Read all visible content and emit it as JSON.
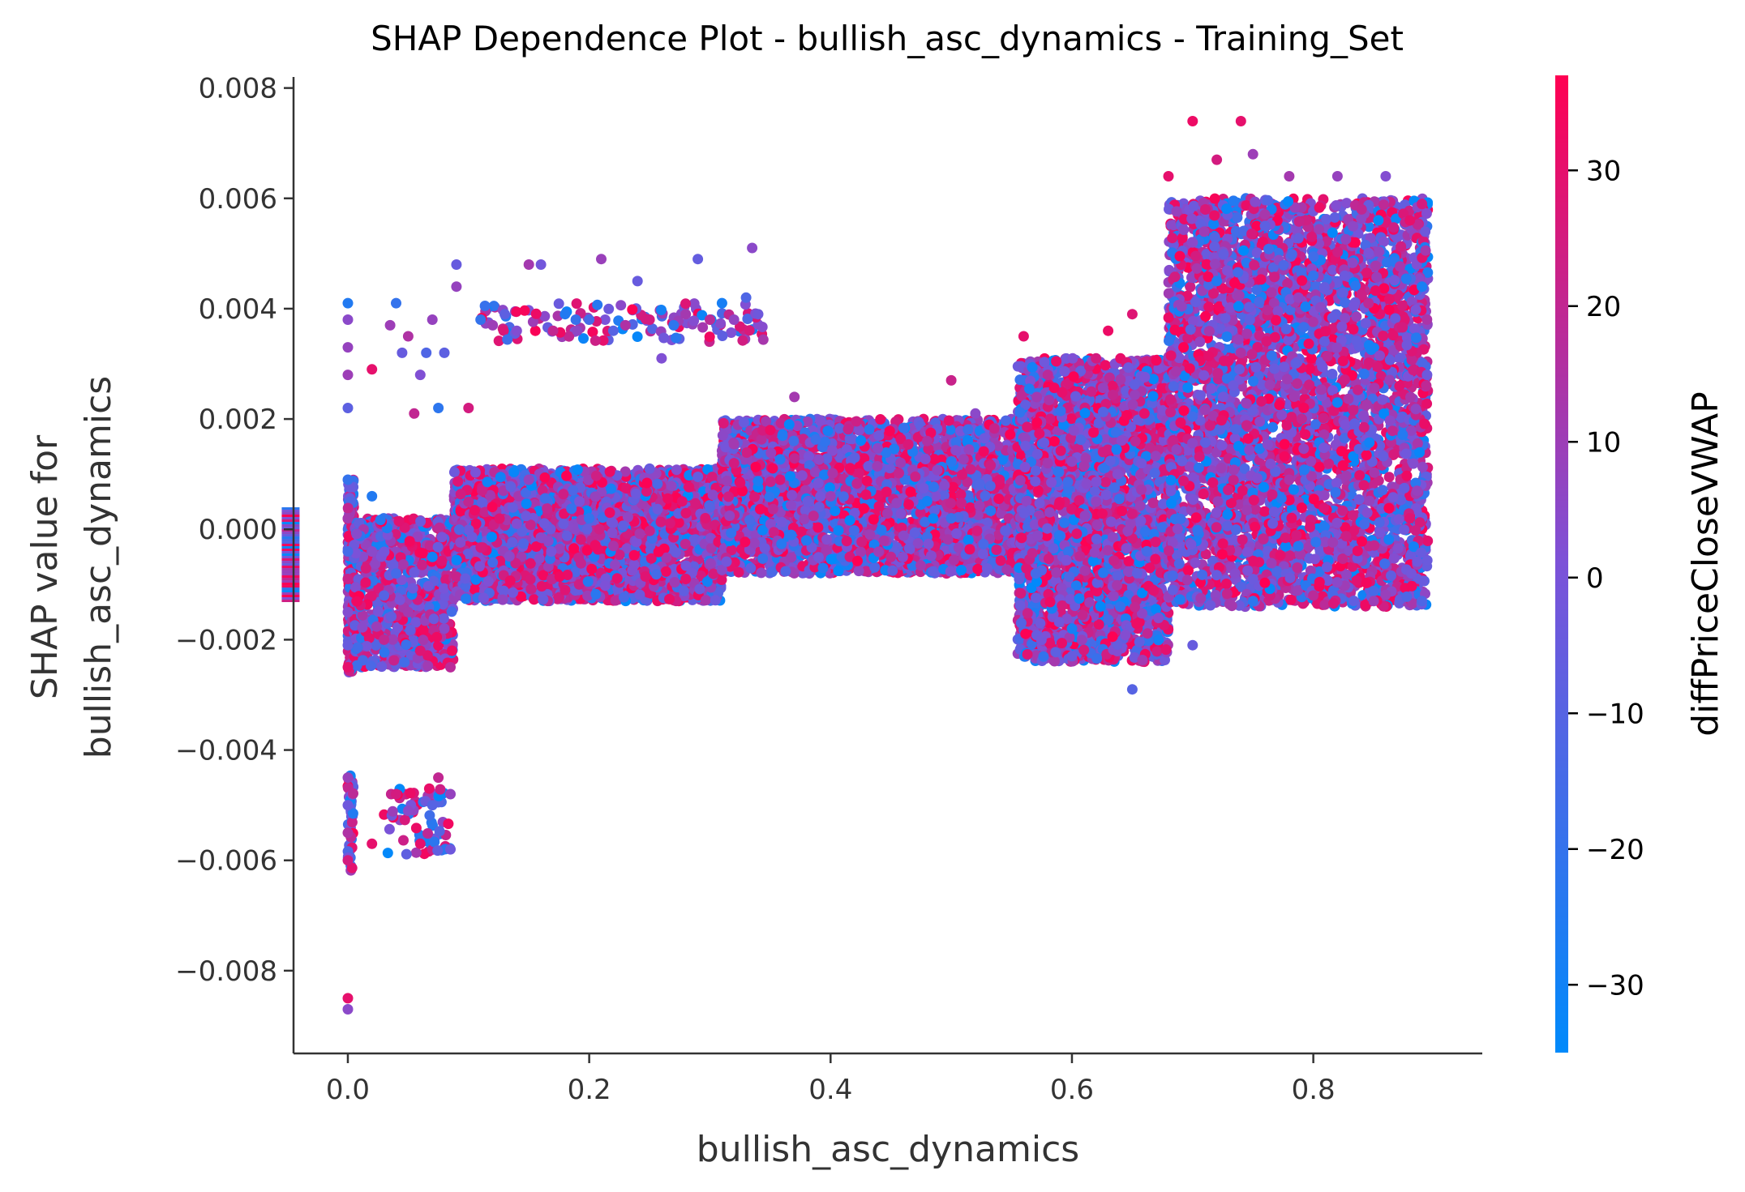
{
  "chart_data": {
    "type": "scatter",
    "title": "SHAP Dependence Plot - bullish_asc_dynamics - Training_Set",
    "xlabel": "bullish_asc_dynamics",
    "ylabel_lines": [
      "SHAP value for",
      "bullish_asc_dynamics"
    ],
    "xlim": [
      -0.045,
      0.94
    ],
    "ylim": [
      -0.0095,
      0.0082
    ],
    "x_ticks": [
      {
        "value": 0.0,
        "label": "0.0"
      },
      {
        "value": 0.2,
        "label": "0.2"
      },
      {
        "value": 0.4,
        "label": "0.4"
      },
      {
        "value": 0.6,
        "label": "0.6"
      },
      {
        "value": 0.8,
        "label": "0.8"
      }
    ],
    "y_ticks": [
      {
        "value": 0.008,
        "label": "0.008"
      },
      {
        "value": 0.006,
        "label": "0.006"
      },
      {
        "value": 0.004,
        "label": "0.004"
      },
      {
        "value": 0.002,
        "label": "0.002"
      },
      {
        "value": 0.0,
        "label": "0.000"
      },
      {
        "value": -0.002,
        "label": "−0.002"
      },
      {
        "value": -0.004,
        "label": "−0.004"
      },
      {
        "value": -0.006,
        "label": "−0.006"
      },
      {
        "value": -0.008,
        "label": "−0.008"
      }
    ],
    "colorbar": {
      "label": "diffPriceCloseVWAP",
      "range": [
        -35,
        37
      ],
      "colors": [
        "#008afb",
        "#7c52d8",
        "#ff0052"
      ],
      "ticks": [
        {
          "value": 30,
          "label": "30"
        },
        {
          "value": 20,
          "label": "20"
        },
        {
          "value": 10,
          "label": "10"
        },
        {
          "value": 0,
          "label": "0"
        },
        {
          "value": -10,
          "label": "−10"
        },
        {
          "value": -20,
          "label": "−20"
        },
        {
          "value": -30,
          "label": "−30"
        }
      ]
    },
    "missing_band": {
      "x": -0.04,
      "y_range": [
        -0.0013,
        0.0004
      ]
    },
    "points": [
      [
        0.0,
        0.0041,
        -25
      ],
      [
        0.0,
        0.0038,
        5
      ],
      [
        0.0,
        0.0033,
        8
      ],
      [
        0.0,
        0.0028,
        10
      ],
      [
        0.0,
        0.0022,
        -8
      ],
      [
        0.0,
        0.0009,
        -20
      ],
      [
        0.0,
        0.0002,
        12
      ],
      [
        0.0,
        -0.0004,
        -15
      ],
      [
        0.0,
        -0.0009,
        22
      ],
      [
        0.0,
        -0.0015,
        3
      ],
      [
        0.0,
        -0.0021,
        -5
      ],
      [
        0.0,
        -0.0025,
        30
      ],
      [
        0.0,
        -0.0045,
        9
      ],
      [
        0.0,
        -0.005,
        -3
      ],
      [
        0.0,
        -0.0055,
        15
      ],
      [
        0.0,
        -0.006,
        25
      ],
      [
        0.0,
        -0.0085,
        30
      ],
      [
        0.0,
        -0.0087,
        5
      ],
      [
        0.02,
        0.0029,
        30
      ],
      [
        0.02,
        0.0006,
        -25
      ],
      [
        0.02,
        -0.0004,
        5
      ],
      [
        0.03,
        -0.0012,
        -10
      ],
      [
        0.03,
        -0.002,
        20
      ],
      [
        0.02,
        -0.0057,
        30
      ],
      [
        0.035,
        0.0037,
        10
      ],
      [
        0.04,
        0.0041,
        -20
      ],
      [
        0.045,
        0.0032,
        -5
      ],
      [
        0.05,
        0.0035,
        15
      ],
      [
        0.055,
        0.0021,
        20
      ],
      [
        0.06,
        0.0028,
        2
      ],
      [
        0.065,
        0.0032,
        -12
      ],
      [
        0.07,
        0.0038,
        8
      ],
      [
        0.075,
        0.0022,
        -22
      ],
      [
        0.08,
        0.0032,
        -8
      ],
      [
        0.04,
        -0.0048,
        25
      ],
      [
        0.05,
        -0.0051,
        5
      ],
      [
        0.06,
        -0.0057,
        30
      ],
      [
        0.07,
        -0.005,
        -10
      ],
      [
        0.075,
        -0.0045,
        20
      ],
      [
        0.085,
        -0.0048,
        8
      ],
      [
        0.085,
        -0.0058,
        -3
      ],
      [
        0.04,
        -0.0008,
        -15
      ],
      [
        0.05,
        -0.0015,
        12
      ],
      [
        0.06,
        -0.0022,
        28
      ],
      [
        0.07,
        -0.0005,
        -30
      ],
      [
        0.08,
        -0.0018,
        5
      ],
      [
        0.085,
        -0.0025,
        18
      ],
      [
        0.09,
        0.0048,
        -5
      ],
      [
        0.09,
        0.0044,
        8
      ],
      [
        0.1,
        0.0022,
        25
      ],
      [
        0.11,
        0.0038,
        -20
      ],
      [
        0.12,
        0.0037,
        10
      ],
      [
        0.13,
        0.0039,
        -8
      ],
      [
        0.14,
        0.0036,
        3
      ],
      [
        0.15,
        0.0048,
        12
      ],
      [
        0.16,
        0.0048,
        -2
      ],
      [
        0.17,
        0.0036,
        20
      ],
      [
        0.18,
        0.0039,
        -25
      ],
      [
        0.19,
        0.0036,
        6
      ],
      [
        0.2,
        0.0038,
        -15
      ],
      [
        0.21,
        0.0049,
        9
      ],
      [
        0.22,
        0.0036,
        -10
      ],
      [
        0.23,
        0.0037,
        15
      ],
      [
        0.24,
        0.0045,
        -5
      ],
      [
        0.25,
        0.0038,
        25
      ],
      [
        0.26,
        0.0031,
        2
      ],
      [
        0.27,
        0.0037,
        -22
      ],
      [
        0.28,
        0.0039,
        12
      ],
      [
        0.29,
        0.0049,
        -6
      ],
      [
        0.3,
        0.0038,
        18
      ],
      [
        0.31,
        0.0041,
        -28
      ],
      [
        0.32,
        0.0038,
        7
      ],
      [
        0.33,
        0.0042,
        -12
      ],
      [
        0.335,
        0.0051,
        5
      ],
      [
        0.34,
        0.0039,
        -3
      ],
      [
        0.1,
        0.0005,
        20
      ],
      [
        0.12,
        -0.0006,
        -15
      ],
      [
        0.15,
        0.0009,
        8
      ],
      [
        0.18,
        -0.0011,
        28
      ],
      [
        0.2,
        0.0002,
        -20
      ],
      [
        0.22,
        -0.0003,
        14
      ],
      [
        0.25,
        0.0011,
        -5
      ],
      [
        0.28,
        -0.0009,
        30
      ],
      [
        0.3,
        0.0004,
        -10
      ],
      [
        0.14,
        0.0001,
        3
      ],
      [
        0.32,
        0.0012,
        25
      ],
      [
        0.35,
        0.0018,
        32
      ],
      [
        0.38,
        -0.0002,
        -25
      ],
      [
        0.4,
        0.0006,
        10
      ],
      [
        0.42,
        0.0013,
        -8
      ],
      [
        0.45,
        -0.0005,
        20
      ],
      [
        0.48,
        0.0016,
        15
      ],
      [
        0.5,
        0.0002,
        -18
      ],
      [
        0.52,
        0.0021,
        5
      ],
      [
        0.54,
        0.0009,
        28
      ],
      [
        0.37,
        0.0024,
        12
      ],
      [
        0.44,
        0.0017,
        -3
      ],
      [
        0.5,
        0.0027,
        22
      ],
      [
        0.56,
        0.0035,
        30
      ],
      [
        0.58,
        0.0028,
        18
      ],
      [
        0.6,
        -0.0018,
        -28
      ],
      [
        0.62,
        0.0031,
        25
      ],
      [
        0.6,
        -0.0023,
        -5
      ],
      [
        0.62,
        0.0005,
        8
      ],
      [
        0.64,
        -0.0014,
        -20
      ],
      [
        0.65,
        -0.0029,
        -10
      ],
      [
        0.66,
        0.0021,
        30
      ],
      [
        0.65,
        0.0039,
        28
      ],
      [
        0.63,
        0.0036,
        32
      ],
      [
        0.58,
        0.0012,
        12
      ],
      [
        0.57,
        -0.0008,
        -15
      ],
      [
        0.68,
        0.0064,
        30
      ],
      [
        0.7,
        0.0074,
        32
      ],
      [
        0.72,
        0.0067,
        25
      ],
      [
        0.74,
        0.0074,
        30
      ],
      [
        0.75,
        0.0068,
        10
      ],
      [
        0.7,
        0.0052,
        5
      ],
      [
        0.72,
        0.0045,
        -25
      ],
      [
        0.74,
        0.0032,
        15
      ],
      [
        0.76,
        0.0055,
        -8
      ],
      [
        0.78,
        0.0064,
        12
      ],
      [
        0.8,
        0.0046,
        -20
      ],
      [
        0.82,
        0.0064,
        8
      ],
      [
        0.84,
        0.0058,
        20
      ],
      [
        0.86,
        0.0064,
        3
      ],
      [
        0.88,
        0.0056,
        30
      ],
      [
        0.89,
        0.0059,
        25
      ],
      [
        0.89,
        0.0044,
        -28
      ],
      [
        0.7,
        -0.0021,
        -5
      ],
      [
        0.75,
        -0.0013,
        -22
      ],
      [
        0.8,
        -0.0012,
        18
      ],
      [
        0.85,
        -0.0013,
        10
      ],
      [
        0.89,
        -0.0013,
        -12
      ],
      [
        0.88,
        0.0002,
        28
      ],
      [
        0.82,
        0.0023,
        -30
      ],
      [
        0.78,
        0.0009,
        14
      ]
    ],
    "point_clusters": [
      {
        "x_range": [
          0.0,
          0.005
        ],
        "y_range": [
          -0.0026,
          0.0009
        ],
        "count": 260
      },
      {
        "x_range": [
          0.005,
          0.088
        ],
        "y_range": [
          -0.0025,
          0.0002
        ],
        "count": 900
      },
      {
        "x_range": [
          0.088,
          0.31
        ],
        "y_range": [
          -0.0013,
          0.0011
        ],
        "count": 3400
      },
      {
        "x_range": [
          0.31,
          0.555
        ],
        "y_range": [
          -0.0008,
          0.002
        ],
        "count": 3200
      },
      {
        "x_range": [
          0.555,
          0.68
        ],
        "y_range": [
          -0.0024,
          0.0031
        ],
        "count": 3000
      },
      {
        "x_range": [
          0.68,
          0.895
        ],
        "y_range": [
          -0.0014,
          0.006
        ],
        "count": 4600
      },
      {
        "x_range": [
          0.0,
          0.005
        ],
        "y_range": [
          -0.0062,
          -0.0044
        ],
        "count": 40
      },
      {
        "x_range": [
          0.03,
          0.085
        ],
        "y_range": [
          -0.0059,
          -0.0047
        ],
        "count": 60
      },
      {
        "x_range": [
          0.11,
          0.345
        ],
        "y_range": [
          0.0034,
          0.0041
        ],
        "count": 120
      }
    ]
  }
}
